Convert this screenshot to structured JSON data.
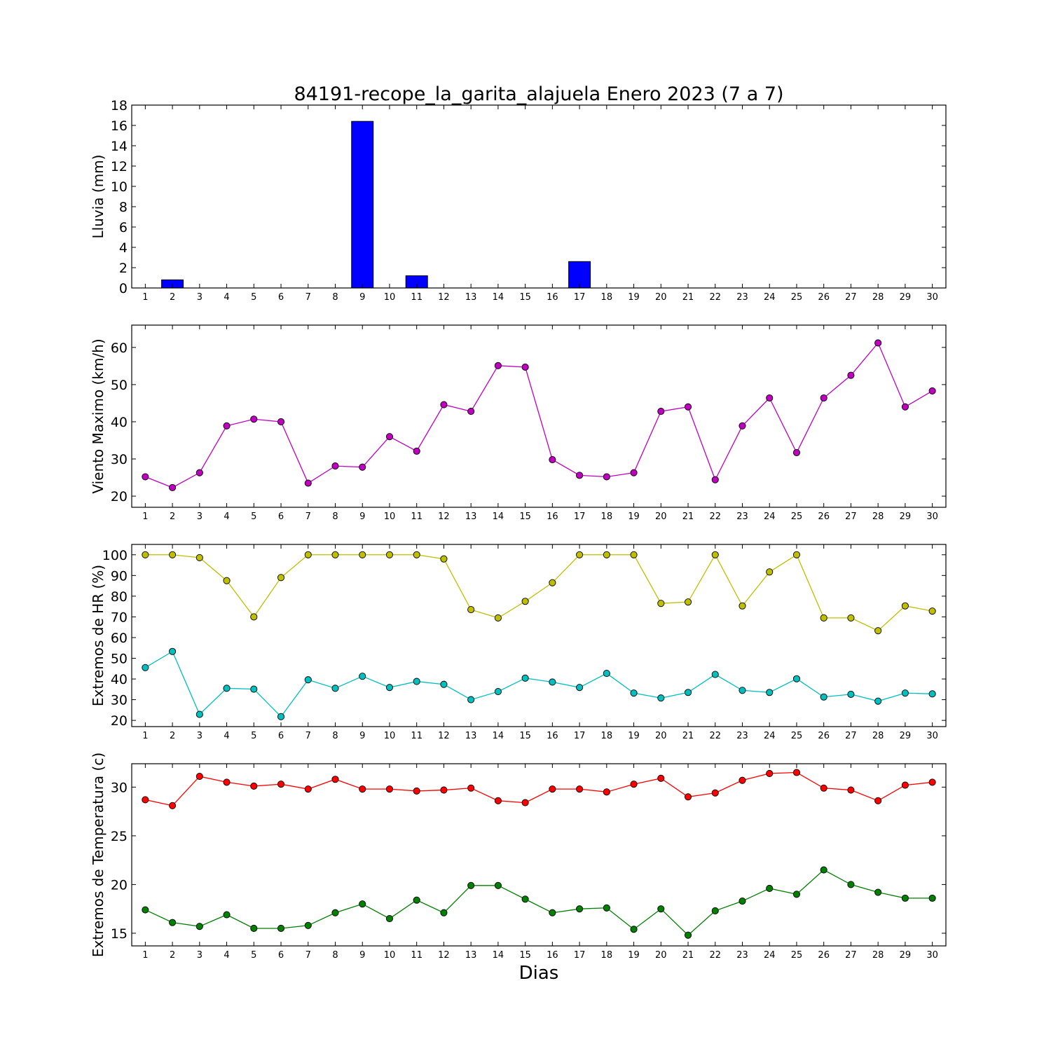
{
  "title": "84191-recope_la_garita_alajuela Enero 2023  (7 a 7)",
  "xlabel": "Dias",
  "chart_data": [
    {
      "type": "bar",
      "ylabel": "Lluvia (mm)",
      "ylim": [
        0,
        18
      ],
      "yticks": [
        0,
        2,
        4,
        6,
        8,
        10,
        12,
        14,
        16,
        18
      ],
      "xlim": [
        0.5,
        30.5
      ],
      "categories": [
        1,
        2,
        3,
        4,
        5,
        6,
        7,
        8,
        9,
        10,
        11,
        12,
        13,
        14,
        15,
        16,
        17,
        18,
        19,
        20,
        21,
        22,
        23,
        24,
        25,
        26,
        27,
        28,
        29,
        30
      ],
      "series": [
        {
          "color": "#0000ff",
          "values": [
            0,
            0.8,
            0,
            0,
            0,
            0,
            0,
            0,
            16.4,
            0,
            1.2,
            0,
            0,
            0,
            0,
            0,
            2.6,
            0,
            0,
            0,
            0,
            0,
            0,
            0,
            0,
            0,
            0,
            0,
            0,
            0
          ]
        }
      ]
    },
    {
      "type": "line",
      "ylabel": "Viento Maximo (km/h)",
      "ylim": [
        17,
        66
      ],
      "yticks": [
        20,
        30,
        40,
        50,
        60
      ],
      "xlim": [
        0.5,
        30.5
      ],
      "categories": [
        1,
        2,
        3,
        4,
        5,
        6,
        7,
        8,
        9,
        10,
        11,
        12,
        13,
        14,
        15,
        16,
        17,
        18,
        19,
        20,
        21,
        22,
        23,
        24,
        25,
        26,
        27,
        28,
        29,
        30
      ],
      "series": [
        {
          "color": "#bf00bf",
          "values": [
            25.2,
            22.3,
            26.3,
            38.9,
            40.7,
            40,
            23.5,
            28.1,
            27.8,
            36,
            32.1,
            44.6,
            42.8,
            55.1,
            54.7,
            29.8,
            25.6,
            25.2,
            26.3,
            42.8,
            44,
            24.4,
            38.9,
            46.4,
            31.7,
            46.4,
            52.5,
            61.2,
            44,
            48.3
          ]
        }
      ]
    },
    {
      "type": "line",
      "ylabel": "Extremos de HR (%)",
      "ylim": [
        17,
        105
      ],
      "yticks": [
        20,
        30,
        40,
        50,
        60,
        70,
        80,
        90,
        100
      ],
      "xlim": [
        0.5,
        30.5
      ],
      "categories": [
        1,
        2,
        3,
        4,
        5,
        6,
        7,
        8,
        9,
        10,
        11,
        12,
        13,
        14,
        15,
        16,
        17,
        18,
        19,
        20,
        21,
        22,
        23,
        24,
        25,
        26,
        27,
        28,
        29,
        30
      ],
      "series": [
        {
          "color": "#bfbf00",
          "values": [
            100,
            100,
            98.6,
            87.5,
            70,
            89,
            100,
            100,
            100,
            100,
            100,
            98,
            73.5,
            69.5,
            77.5,
            86.5,
            100,
            100,
            100,
            76.5,
            77.2,
            100,
            75.3,
            91.7,
            100,
            69.5,
            69.5,
            63.3,
            75.3,
            72.8
          ]
        },
        {
          "color": "#00bfbf",
          "values": [
            45.5,
            53.3,
            22.9,
            35.5,
            35.1,
            21.8,
            39.6,
            35.5,
            41.3,
            35.9,
            38.8,
            37.4,
            30,
            33.9,
            40.4,
            38.5,
            35.9,
            42.7,
            33.2,
            30.8,
            33.5,
            42.2,
            34.5,
            33.5,
            40.1,
            31.3,
            32.6,
            29.3,
            33.2,
            32.8
          ]
        }
      ]
    },
    {
      "type": "line",
      "ylabel": "Extremos de Temperatura (c)",
      "ylim": [
        13.7,
        32.4
      ],
      "yticks": [
        15,
        20,
        25,
        30
      ],
      "xlim": [
        0.5,
        30.5
      ],
      "categories": [
        1,
        2,
        3,
        4,
        5,
        6,
        7,
        8,
        9,
        10,
        11,
        12,
        13,
        14,
        15,
        16,
        17,
        18,
        19,
        20,
        21,
        22,
        23,
        24,
        25,
        26,
        27,
        28,
        29,
        30
      ],
      "series": [
        {
          "color": "#ff0000",
          "values": [
            28.7,
            28.1,
            31.1,
            30.5,
            30.1,
            30.3,
            29.8,
            30.8,
            29.8,
            29.8,
            29.6,
            29.7,
            29.9,
            28.6,
            28.4,
            29.8,
            29.8,
            29.5,
            30.3,
            30.9,
            29,
            29.4,
            30.7,
            31.4,
            31.5,
            29.9,
            29.7,
            28.6,
            30.2,
            30.5
          ]
        },
        {
          "color": "#008000",
          "values": [
            17.4,
            16.1,
            15.7,
            16.9,
            15.5,
            15.5,
            15.8,
            17.1,
            18,
            16.5,
            18.4,
            17.1,
            19.9,
            19.9,
            18.5,
            17.1,
            17.5,
            17.6,
            15.4,
            17.5,
            14.8,
            17.3,
            18.3,
            19.6,
            19,
            21.5,
            20,
            19.2,
            18.6,
            18.6
          ]
        }
      ]
    }
  ]
}
